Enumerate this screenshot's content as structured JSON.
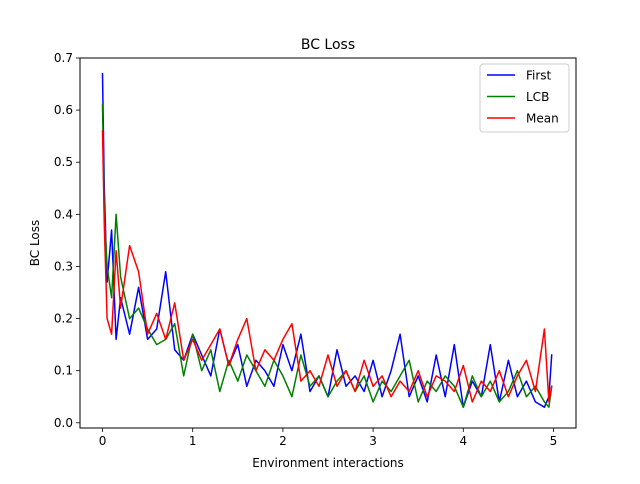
{
  "chart_data": {
    "type": "line",
    "title": "BC Loss",
    "xlabel": "Environment interactions",
    "ylabel": "BC Loss",
    "xlim": [
      -0.25,
      5.25
    ],
    "ylim": [
      -0.01,
      0.7
    ],
    "xticks": [
      0,
      1,
      2,
      3,
      4,
      5
    ],
    "xtick_labels": [
      "0",
      "1",
      "2",
      "3",
      "4",
      "5"
    ],
    "yticks": [
      0.0,
      0.1,
      0.2,
      0.3,
      0.4,
      0.5,
      0.6,
      0.7
    ],
    "ytick_labels": [
      "0.0",
      "0.1",
      "0.2",
      "0.3",
      "0.4",
      "0.5",
      "0.6",
      "0.7"
    ],
    "grid": false,
    "legend_position": "upper right",
    "series": [
      {
        "name": "First",
        "color": "#0000ff",
        "x": [
          0.0,
          0.02,
          0.05,
          0.1,
          0.15,
          0.2,
          0.3,
          0.4,
          0.5,
          0.6,
          0.7,
          0.8,
          0.9,
          1.0,
          1.1,
          1.2,
          1.3,
          1.4,
          1.5,
          1.6,
          1.7,
          1.8,
          1.9,
          2.0,
          2.1,
          2.2,
          2.3,
          2.4,
          2.5,
          2.6,
          2.7,
          2.8,
          2.9,
          3.0,
          3.1,
          3.2,
          3.3,
          3.4,
          3.5,
          3.6,
          3.7,
          3.8,
          3.9,
          4.0,
          4.1,
          4.2,
          4.3,
          4.4,
          4.5,
          4.6,
          4.7,
          4.8,
          4.9,
          4.95,
          4.98
        ],
        "y": [
          0.67,
          0.45,
          0.27,
          0.37,
          0.16,
          0.24,
          0.17,
          0.26,
          0.16,
          0.18,
          0.29,
          0.14,
          0.12,
          0.17,
          0.13,
          0.09,
          0.18,
          0.11,
          0.15,
          0.07,
          0.12,
          0.1,
          0.07,
          0.15,
          0.1,
          0.17,
          0.06,
          0.09,
          0.05,
          0.14,
          0.07,
          0.09,
          0.06,
          0.12,
          0.05,
          0.1,
          0.17,
          0.05,
          0.09,
          0.04,
          0.13,
          0.05,
          0.15,
          0.03,
          0.08,
          0.05,
          0.15,
          0.04,
          0.12,
          0.05,
          0.08,
          0.04,
          0.03,
          0.05,
          0.13
        ]
      },
      {
        "name": "LCB",
        "color": "#008000",
        "x": [
          0.0,
          0.02,
          0.05,
          0.1,
          0.15,
          0.2,
          0.3,
          0.4,
          0.5,
          0.6,
          0.7,
          0.8,
          0.9,
          1.0,
          1.1,
          1.2,
          1.3,
          1.4,
          1.5,
          1.6,
          1.7,
          1.8,
          1.9,
          2.0,
          2.1,
          2.2,
          2.3,
          2.4,
          2.5,
          2.6,
          2.7,
          2.8,
          2.9,
          3.0,
          3.1,
          3.2,
          3.3,
          3.4,
          3.5,
          3.6,
          3.7,
          3.8,
          3.9,
          4.0,
          4.1,
          4.2,
          4.3,
          4.4,
          4.5,
          4.6,
          4.7,
          4.8,
          4.9,
          4.95,
          4.98
        ],
        "y": [
          0.61,
          0.4,
          0.3,
          0.24,
          0.4,
          0.28,
          0.2,
          0.22,
          0.18,
          0.15,
          0.16,
          0.19,
          0.09,
          0.17,
          0.1,
          0.14,
          0.06,
          0.12,
          0.08,
          0.13,
          0.1,
          0.07,
          0.12,
          0.09,
          0.05,
          0.13,
          0.07,
          0.09,
          0.05,
          0.08,
          0.1,
          0.06,
          0.09,
          0.04,
          0.08,
          0.06,
          0.09,
          0.12,
          0.04,
          0.08,
          0.06,
          0.09,
          0.07,
          0.03,
          0.09,
          0.05,
          0.08,
          0.04,
          0.06,
          0.1,
          0.05,
          0.07,
          0.04,
          0.03,
          0.07
        ]
      },
      {
        "name": "Mean",
        "color": "#ff0000",
        "x": [
          0.0,
          0.02,
          0.05,
          0.1,
          0.15,
          0.2,
          0.3,
          0.4,
          0.5,
          0.6,
          0.7,
          0.8,
          0.9,
          1.0,
          1.1,
          1.2,
          1.3,
          1.4,
          1.5,
          1.6,
          1.7,
          1.8,
          1.9,
          2.0,
          2.1,
          2.2,
          2.3,
          2.4,
          2.5,
          2.6,
          2.7,
          2.8,
          2.9,
          3.0,
          3.1,
          3.2,
          3.3,
          3.4,
          3.5,
          3.6,
          3.7,
          3.8,
          3.9,
          4.0,
          4.1,
          4.2,
          4.3,
          4.4,
          4.5,
          4.6,
          4.7,
          4.8,
          4.9,
          4.95,
          4.98
        ],
        "y": [
          0.56,
          0.38,
          0.2,
          0.17,
          0.33,
          0.22,
          0.34,
          0.29,
          0.17,
          0.21,
          0.16,
          0.23,
          0.12,
          0.16,
          0.12,
          0.15,
          0.18,
          0.11,
          0.16,
          0.2,
          0.1,
          0.14,
          0.12,
          0.16,
          0.19,
          0.08,
          0.1,
          0.07,
          0.13,
          0.07,
          0.1,
          0.06,
          0.12,
          0.07,
          0.09,
          0.05,
          0.08,
          0.06,
          0.1,
          0.05,
          0.09,
          0.08,
          0.06,
          0.11,
          0.04,
          0.08,
          0.06,
          0.1,
          0.05,
          0.09,
          0.12,
          0.06,
          0.18,
          0.04,
          0.07
        ]
      }
    ]
  }
}
